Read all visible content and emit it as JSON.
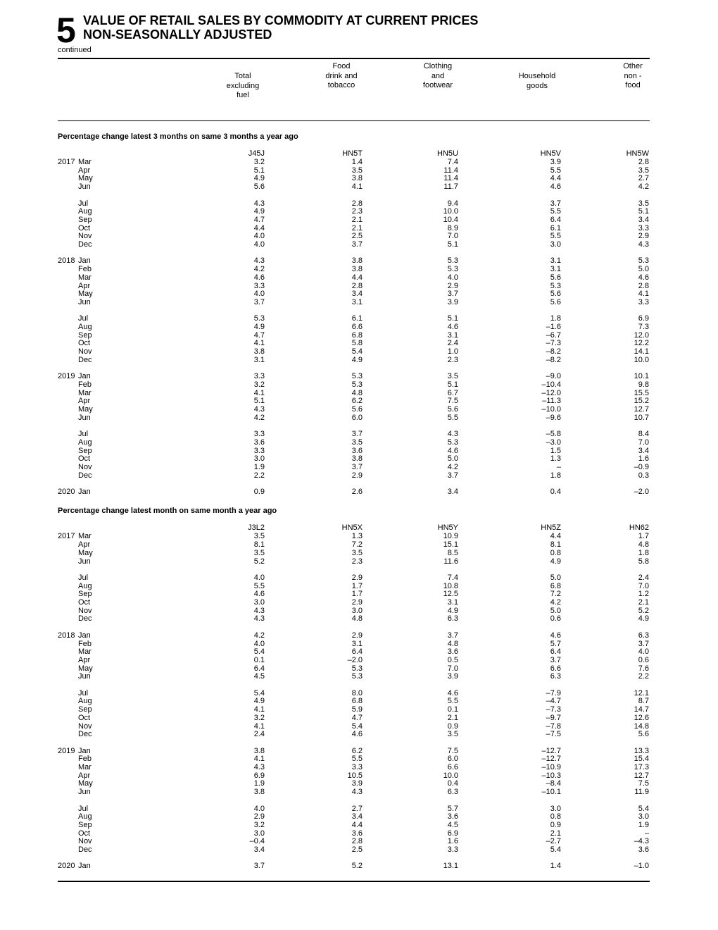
{
  "header": {
    "number": "5",
    "title_lines": [
      "VALUE OF RETAIL SALES BY COMMODITY AT CURRENT PRICES",
      "NON-SEASONALLY ADJUSTED"
    ],
    "note": "continued"
  },
  "columns": [
    [
      "Total",
      "excluding",
      "fuel"
    ],
    [
      "Food",
      "drink and",
      "tobacco"
    ],
    [
      "Clothing",
      "and",
      "footwear"
    ],
    [
      "Household",
      "goods"
    ],
    [
      "Other",
      "non -",
      "food"
    ]
  ],
  "sections": [
    {
      "title": "Percentage change latest 3 months on same 3 months a year ago",
      "codes": [
        "J45J",
        "HN5T",
        "HN5U",
        "HN5V",
        "HN5W"
      ],
      "groups": [
        [
          {
            "year": "2017",
            "month": "Mar",
            "values": [
              "3.2",
              "1.4",
              "7.4",
              "3.9",
              "2.8"
            ]
          },
          {
            "month": "Apr",
            "values": [
              "5.1",
              "3.5",
              "11.4",
              "5.5",
              "3.5"
            ]
          },
          {
            "month": "May",
            "values": [
              "4.9",
              "3.8",
              "11.4",
              "4.4",
              "2.7"
            ]
          },
          {
            "month": "Jun",
            "values": [
              "5.6",
              "4.1",
              "11.7",
              "4.6",
              "4.2"
            ]
          }
        ],
        [
          {
            "month": "Jul",
            "values": [
              "4.3",
              "2.8",
              "9.4",
              "3.7",
              "3.5"
            ]
          },
          {
            "month": "Aug",
            "values": [
              "4.9",
              "2.3",
              "10.0",
              "5.5",
              "5.1"
            ]
          },
          {
            "month": "Sep",
            "values": [
              "4.7",
              "2.1",
              "10.4",
              "6.4",
              "3.4"
            ]
          },
          {
            "month": "Oct",
            "values": [
              "4.4",
              "2.1",
              "8.9",
              "6.1",
              "3.3"
            ]
          },
          {
            "month": "Nov",
            "values": [
              "4.0",
              "2.5",
              "7.0",
              "5.5",
              "2.9"
            ]
          },
          {
            "month": "Dec",
            "values": [
              "4.0",
              "3.7",
              "5.1",
              "3.0",
              "4.3"
            ]
          }
        ],
        [
          {
            "year": "2018",
            "month": "Jan",
            "values": [
              "4.3",
              "3.8",
              "5.3",
              "3.1",
              "5.3"
            ]
          },
          {
            "month": "Feb",
            "values": [
              "4.2",
              "3.8",
              "5.3",
              "3.1",
              "5.0"
            ]
          },
          {
            "month": "Mar",
            "values": [
              "4.6",
              "4.4",
              "4.0",
              "5.6",
              "4.6"
            ]
          },
          {
            "month": "Apr",
            "values": [
              "3.3",
              "2.8",
              "2.9",
              "5.3",
              "2.8"
            ]
          },
          {
            "month": "May",
            "values": [
              "4.0",
              "3.4",
              "3.7",
              "5.6",
              "4.1"
            ]
          },
          {
            "month": "Jun",
            "values": [
              "3.7",
              "3.1",
              "3.9",
              "5.6",
              "3.3"
            ]
          }
        ],
        [
          {
            "month": "Jul",
            "values": [
              "5.3",
              "6.1",
              "5.1",
              "1.8",
              "6.9"
            ]
          },
          {
            "month": "Aug",
            "values": [
              "4.9",
              "6.6",
              "4.6",
              "–1.6",
              "7.3"
            ]
          },
          {
            "month": "Sep",
            "values": [
              "4.7",
              "6.8",
              "3.1",
              "–6.7",
              "12.0"
            ]
          },
          {
            "month": "Oct",
            "values": [
              "4.1",
              "5.8",
              "2.4",
              "–7.3",
              "12.2"
            ]
          },
          {
            "month": "Nov",
            "values": [
              "3.8",
              "5.4",
              "1.0",
              "–8.2",
              "14.1"
            ]
          },
          {
            "month": "Dec",
            "values": [
              "3.1",
              "4.9",
              "2.3",
              "–8.2",
              "10.0"
            ]
          }
        ],
        [
          {
            "year": "2019",
            "month": "Jan",
            "values": [
              "3.3",
              "5.3",
              "3.5",
              "–9.0",
              "10.1"
            ]
          },
          {
            "month": "Feb",
            "values": [
              "3.2",
              "5.3",
              "5.1",
              "–10.4",
              "9.8"
            ]
          },
          {
            "month": "Mar",
            "values": [
              "4.1",
              "4.8",
              "6.7",
              "–12.0",
              "15.5"
            ]
          },
          {
            "month": "Apr",
            "values": [
              "5.1",
              "6.2",
              "7.5",
              "–11.3",
              "15.2"
            ]
          },
          {
            "month": "May",
            "values": [
              "4.3",
              "5.6",
              "5.6",
              "–10.0",
              "12.7"
            ]
          },
          {
            "month": "Jun",
            "values": [
              "4.2",
              "6.0",
              "5.5",
              "–9.6",
              "10.7"
            ]
          }
        ],
        [
          {
            "month": "Jul",
            "values": [
              "3.3",
              "3.7",
              "4.3",
              "–5.8",
              "8.4"
            ]
          },
          {
            "month": "Aug",
            "values": [
              "3.6",
              "3.5",
              "5.3",
              "–3.0",
              "7.0"
            ]
          },
          {
            "month": "Sep",
            "values": [
              "3.3",
              "3.6",
              "4.6",
              "1.5",
              "3.4"
            ]
          },
          {
            "month": "Oct",
            "values": [
              "3.0",
              "3.8",
              "5.0",
              "1.3",
              "1.6"
            ]
          },
          {
            "month": "Nov",
            "values": [
              "1.9",
              "3.7",
              "4.2",
              "–",
              "–0.9"
            ]
          },
          {
            "month": "Dec",
            "values": [
              "2.2",
              "2.9",
              "3.7",
              "1.8",
              "0.3"
            ]
          }
        ],
        [
          {
            "year": "2020",
            "month": "Jan",
            "values": [
              "0.9",
              "2.6",
              "3.4",
              "0.4",
              "–2.0"
            ]
          }
        ]
      ]
    },
    {
      "title": "Percentage change latest month on same month a year ago",
      "codes": [
        "J3L2",
        "HN5X",
        "HN5Y",
        "HN5Z",
        "HN62"
      ],
      "groups": [
        [
          {
            "year": "2017",
            "month": "Mar",
            "values": [
              "3.5",
              "1.3",
              "10.9",
              "4.4",
              "1.7"
            ]
          },
          {
            "month": "Apr",
            "values": [
              "8.1",
              "7.2",
              "15.1",
              "8.1",
              "4.8"
            ]
          },
          {
            "month": "May",
            "values": [
              "3.5",
              "3.5",
              "8.5",
              "0.8",
              "1.8"
            ]
          },
          {
            "month": "Jun",
            "values": [
              "5.2",
              "2.3",
              "11.6",
              "4.9",
              "5.8"
            ]
          }
        ],
        [
          {
            "month": "Jul",
            "values": [
              "4.0",
              "2.9",
              "7.4",
              "5.0",
              "2.4"
            ]
          },
          {
            "month": "Aug",
            "values": [
              "5.5",
              "1.7",
              "10.8",
              "6.8",
              "7.0"
            ]
          },
          {
            "month": "Sep",
            "values": [
              "4.6",
              "1.7",
              "12.5",
              "7.2",
              "1.2"
            ]
          },
          {
            "month": "Oct",
            "values": [
              "3.0",
              "2.9",
              "3.1",
              "4.2",
              "2.1"
            ]
          },
          {
            "month": "Nov",
            "values": [
              "4.3",
              "3.0",
              "4.9",
              "5.0",
              "5.2"
            ]
          },
          {
            "month": "Dec",
            "values": [
              "4.3",
              "4.8",
              "6.3",
              "0.6",
              "4.9"
            ]
          }
        ],
        [
          {
            "year": "2018",
            "month": "Jan",
            "values": [
              "4.2",
              "2.9",
              "3.7",
              "4.6",
              "6.3"
            ]
          },
          {
            "month": "Feb",
            "values": [
              "4.0",
              "3.1",
              "4.8",
              "5.7",
              "3.7"
            ]
          },
          {
            "month": "Mar",
            "values": [
              "5.4",
              "6.4",
              "3.6",
              "6.4",
              "4.0"
            ]
          },
          {
            "month": "Apr",
            "values": [
              "0.1",
              "–2.0",
              "0.5",
              "3.7",
              "0.6"
            ]
          },
          {
            "month": "May",
            "values": [
              "6.4",
              "5.3",
              "7.0",
              "6.6",
              "7.6"
            ]
          },
          {
            "month": "Jun",
            "values": [
              "4.5",
              "5.3",
              "3.9",
              "6.3",
              "2.2"
            ]
          }
        ],
        [
          {
            "month": "Jul",
            "values": [
              "5.4",
              "8.0",
              "4.6",
              "–7.9",
              "12.1"
            ]
          },
          {
            "month": "Aug",
            "values": [
              "4.9",
              "6.8",
              "5.5",
              "–4.7",
              "8.7"
            ]
          },
          {
            "month": "Sep",
            "values": [
              "4.1",
              "5.9",
              "0.1",
              "–7.3",
              "14.7"
            ]
          },
          {
            "month": "Oct",
            "values": [
              "3.2",
              "4.7",
              "2.1",
              "–9.7",
              "12.6"
            ]
          },
          {
            "month": "Nov",
            "values": [
              "4.1",
              "5.4",
              "0.9",
              "–7.8",
              "14.8"
            ]
          },
          {
            "month": "Dec",
            "values": [
              "2.4",
              "4.6",
              "3.5",
              "–7.5",
              "5.6"
            ]
          }
        ],
        [
          {
            "year": "2019",
            "month": "Jan",
            "values": [
              "3.8",
              "6.2",
              "7.5",
              "–12.7",
              "13.3"
            ]
          },
          {
            "month": "Feb",
            "values": [
              "4.1",
              "5.5",
              "6.0",
              "–12.7",
              "15.4"
            ]
          },
          {
            "month": "Mar",
            "values": [
              "4.3",
              "3.3",
              "6.6",
              "–10.9",
              "17.3"
            ]
          },
          {
            "month": "Apr",
            "values": [
              "6.9",
              "10.5",
              "10.0",
              "–10.3",
              "12.7"
            ]
          },
          {
            "month": "May",
            "values": [
              "1.9",
              "3.9",
              "0.4",
              "–8.4",
              "7.5"
            ]
          },
          {
            "month": "Jun",
            "values": [
              "3.8",
              "4.3",
              "6.3",
              "–10.1",
              "11.9"
            ]
          }
        ],
        [
          {
            "month": "Jul",
            "values": [
              "4.0",
              "2.7",
              "5.7",
              "3.0",
              "5.4"
            ]
          },
          {
            "month": "Aug",
            "values": [
              "2.9",
              "3.4",
              "3.6",
              "0.8",
              "3.0"
            ]
          },
          {
            "month": "Sep",
            "values": [
              "3.2",
              "4.4",
              "4.5",
              "0.9",
              "1.9"
            ]
          },
          {
            "month": "Oct",
            "values": [
              "3.0",
              "3.6",
              "6.9",
              "2.1",
              "–"
            ]
          },
          {
            "month": "Nov",
            "values": [
              "–0.4",
              "2.8",
              "1.6",
              "–2.7",
              "–4.3"
            ]
          },
          {
            "month": "Dec",
            "values": [
              "3.4",
              "2.5",
              "3.3",
              "5.4",
              "3.6"
            ]
          }
        ],
        [
          {
            "year": "2020",
            "month": "Jan",
            "values": [
              "3.7",
              "5.2",
              "13.1",
              "1.4",
              "–1.0"
            ]
          }
        ]
      ]
    }
  ]
}
